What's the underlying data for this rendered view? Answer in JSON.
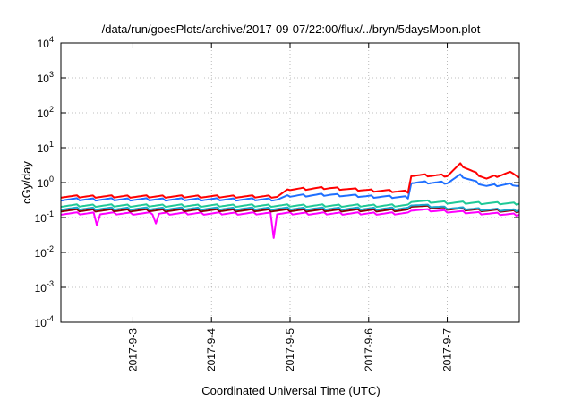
{
  "chart_data": {
    "type": "line",
    "title": "/data/run/goesPlots/archive/2017-09-07/22:00/flux/../bryn/5daysMoon.plot",
    "xlabel": "Coordinated Universal Time (UTC)",
    "ylabel": "cGy/day",
    "yscale": "log",
    "xlim": [
      "2017-09-02T02:00",
      "2017-09-07T22:00"
    ],
    "ylim": [
      0.0001,
      10000
    ],
    "grid": true,
    "legend": "none",
    "x_tick_labels": [
      "2017-9-3",
      "2017-9-4",
      "2017-9-5",
      "2017-9-6",
      "2017-9-7"
    ],
    "x_ticks": [
      "2017-09-03T00:00",
      "2017-09-04T00:00",
      "2017-09-05T00:00",
      "2017-09-06T00:00",
      "2017-09-07T00:00"
    ],
    "y_ticks": [
      {
        "value": 0.0001,
        "base": "10",
        "exp": "-4"
      },
      {
        "value": 0.001,
        "base": "10",
        "exp": "-3"
      },
      {
        "value": 0.01,
        "base": "10",
        "exp": "-2"
      },
      {
        "value": 0.1,
        "base": "10",
        "exp": "-1"
      },
      {
        "value": 1,
        "base": "10",
        "exp": "0"
      },
      {
        "value": 10,
        "base": "10",
        "exp": "1"
      },
      {
        "value": 100,
        "base": "10",
        "exp": "2"
      },
      {
        "value": 1000,
        "base": "10",
        "exp": "3"
      },
      {
        "value": 10000,
        "base": "10",
        "exp": "4"
      }
    ],
    "series": [
      {
        "color": "#ff00ff",
        "x": [
          "2017-09-02T02:00",
          "2017-09-02T12:00",
          "2017-09-02T13:00",
          "2017-09-02T14:00",
          "2017-09-03T00:00",
          "2017-09-03T06:00",
          "2017-09-03T07:00",
          "2017-09-03T08:00",
          "2017-09-04T00:00",
          "2017-09-04T12:00",
          "2017-09-04T18:00",
          "2017-09-04T19:00",
          "2017-09-04T20:00",
          "2017-09-05T00:00",
          "2017-09-05T12:00",
          "2017-09-06T00:00",
          "2017-09-06T12:00",
          "2017-09-06T13:00",
          "2017-09-07T00:00",
          "2017-09-07T12:00",
          "2017-09-07T22:00"
        ],
        "values": [
          0.13,
          0.13,
          0.065,
          0.13,
          0.13,
          0.13,
          0.07,
          0.13,
          0.13,
          0.13,
          0.13,
          0.028,
          0.13,
          0.13,
          0.13,
          0.13,
          0.13,
          0.17,
          0.15,
          0.13,
          0.12
        ]
      },
      {
        "color": "#8b0000",
        "x": [
          "2017-09-02T02:00",
          "2017-09-03T00:00",
          "2017-09-04T00:00",
          "2017-09-05T00:00",
          "2017-09-06T00:00",
          "2017-09-06T12:00",
          "2017-09-06T13:00",
          "2017-09-07T00:00",
          "2017-09-07T12:00",
          "2017-09-07T22:00"
        ],
        "values": [
          0.16,
          0.16,
          0.16,
          0.16,
          0.16,
          0.16,
          0.22,
          0.18,
          0.16,
          0.15
        ]
      },
      {
        "color": "#1aa5cc",
        "x": [
          "2017-09-02T02:00",
          "2017-09-03T00:00",
          "2017-09-04T00:00",
          "2017-09-05T00:00",
          "2017-09-06T00:00",
          "2017-09-06T12:00",
          "2017-09-06T13:00",
          "2017-09-07T00:00",
          "2017-09-07T12:00",
          "2017-09-07T22:00"
        ],
        "values": [
          0.18,
          0.18,
          0.18,
          0.18,
          0.18,
          0.18,
          0.24,
          0.19,
          0.17,
          0.16
        ]
      },
      {
        "color": "#20c997",
        "x": [
          "2017-09-02T02:00",
          "2017-09-03T00:00",
          "2017-09-04T00:00",
          "2017-09-05T00:00",
          "2017-09-06T00:00",
          "2017-09-06T12:00",
          "2017-09-06T13:00",
          "2017-09-07T00:00",
          "2017-09-07T12:00",
          "2017-09-07T22:00"
        ],
        "values": [
          0.22,
          0.22,
          0.22,
          0.22,
          0.22,
          0.22,
          0.3,
          0.27,
          0.26,
          0.25
        ]
      },
      {
        "color": "#1e6fff",
        "x": [
          "2017-09-02T02:00",
          "2017-09-03T00:00",
          "2017-09-04T00:00",
          "2017-09-04T20:00",
          "2017-09-05T00:00",
          "2017-09-05T12:00",
          "2017-09-06T00:00",
          "2017-09-06T12:00",
          "2017-09-06T13:00",
          "2017-09-07T00:00",
          "2017-09-07T04:00",
          "2017-09-07T08:00",
          "2017-09-07T12:00",
          "2017-09-07T20:00",
          "2017-09-07T22:00"
        ],
        "values": [
          0.33,
          0.33,
          0.33,
          0.33,
          0.42,
          0.45,
          0.4,
          0.38,
          1.0,
          1.0,
          1.6,
          1.1,
          0.8,
          0.9,
          0.8
        ]
      },
      {
        "color": "#ff0000",
        "x": [
          "2017-09-02T02:00",
          "2017-09-03T00:00",
          "2017-09-04T00:00",
          "2017-09-04T20:00",
          "2017-09-05T00:00",
          "2017-09-05T12:00",
          "2017-09-06T00:00",
          "2017-09-06T12:00",
          "2017-09-06T13:00",
          "2017-09-07T00:00",
          "2017-09-07T04:00",
          "2017-09-07T08:00",
          "2017-09-07T12:00",
          "2017-09-07T20:00",
          "2017-09-07T22:00"
        ],
        "values": [
          0.4,
          0.4,
          0.4,
          0.4,
          0.65,
          0.7,
          0.6,
          0.55,
          1.6,
          1.6,
          3.3,
          2.0,
          1.3,
          2.0,
          1.4
        ]
      }
    ]
  }
}
